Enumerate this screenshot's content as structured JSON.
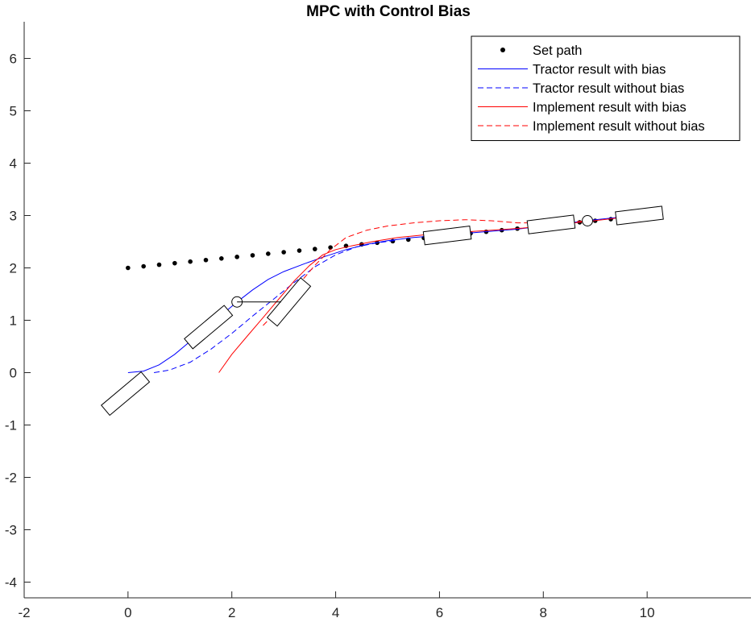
{
  "chart_data": {
    "type": "line",
    "title": "MPC with Control Bias",
    "xlabel": "",
    "ylabel": "",
    "xlim": [
      -2,
      12
    ],
    "ylim": [
      -4.3,
      6.7
    ],
    "xticks": [
      -2,
      0,
      2,
      4,
      6,
      8,
      10
    ],
    "yticks": [
      -4,
      -3,
      -2,
      -1,
      0,
      1,
      2,
      3,
      4,
      5,
      6
    ],
    "grid": false,
    "legend_position": "top-right",
    "series": [
      {
        "name": "Set path",
        "style": "dots",
        "color": "#000000",
        "x": [
          0,
          0.3,
          0.6,
          0.9,
          1.2,
          1.5,
          1.8,
          2.1,
          2.4,
          2.7,
          3.0,
          3.3,
          3.6,
          3.9,
          4.2,
          4.5,
          4.8,
          5.1,
          5.4,
          5.7,
          6.0,
          6.3,
          6.6,
          6.9,
          7.2,
          7.5,
          7.8,
          8.1,
          8.4,
          8.7,
          9.0,
          9.3
        ],
        "y": [
          2.0,
          2.03,
          2.06,
          2.09,
          2.12,
          2.15,
          2.18,
          2.21,
          2.24,
          2.27,
          2.3,
          2.33,
          2.36,
          2.39,
          2.42,
          2.45,
          2.48,
          2.51,
          2.54,
          2.57,
          2.6,
          2.63,
          2.66,
          2.69,
          2.72,
          2.75,
          2.78,
          2.81,
          2.84,
          2.87,
          2.9,
          2.93
        ]
      },
      {
        "name": "Tractor result with bias",
        "style": "solid",
        "color": "#0000ff",
        "x": [
          0,
          0.3,
          0.6,
          0.9,
          1.2,
          1.5,
          1.8,
          2.1,
          2.4,
          2.7,
          3.0,
          3.4,
          3.8,
          4.2,
          4.6,
          5.0,
          5.5,
          6.0,
          6.5,
          7.0,
          7.5,
          8.0,
          8.5,
          9.0,
          9.4
        ],
        "y": [
          0,
          0.03,
          0.15,
          0.35,
          0.6,
          0.85,
          1.1,
          1.35,
          1.58,
          1.78,
          1.93,
          2.08,
          2.22,
          2.35,
          2.45,
          2.52,
          2.58,
          2.62,
          2.66,
          2.7,
          2.74,
          2.8,
          2.86,
          2.92,
          2.96
        ]
      },
      {
        "name": "Tractor result without bias",
        "style": "dashed",
        "color": "#0000ff",
        "x": [
          0.5,
          0.8,
          1.2,
          1.6,
          2.0,
          2.4,
          2.8,
          3.2,
          3.6,
          4.0,
          4.4,
          4.8,
          5.2
        ],
        "y": [
          0,
          0.05,
          0.2,
          0.45,
          0.75,
          1.08,
          1.4,
          1.72,
          2.02,
          2.25,
          2.4,
          2.48,
          2.53
        ]
      },
      {
        "name": "Implement result with bias",
        "style": "solid",
        "color": "#ff0000",
        "x": [
          1.75,
          2.0,
          2.3,
          2.6,
          2.9,
          3.2,
          3.5,
          3.75,
          4.0,
          4.3,
          4.7,
          5.2,
          5.8,
          6.4,
          7.0,
          7.6,
          8.2,
          8.8,
          9.4
        ],
        "y": [
          0,
          0.35,
          0.7,
          1.05,
          1.4,
          1.75,
          2.05,
          2.25,
          2.35,
          2.42,
          2.5,
          2.58,
          2.64,
          2.68,
          2.72,
          2.76,
          2.82,
          2.88,
          2.95
        ]
      },
      {
        "name": "Implement result without bias",
        "style": "dashed",
        "color": "#ff0000",
        "x": [
          2.6,
          2.8,
          3.0,
          3.3,
          3.6,
          3.9,
          4.2,
          4.6,
          5.0,
          5.5,
          6.0,
          6.5,
          7.0,
          7.5,
          8.0,
          8.5,
          9.0
        ],
        "y": [
          0.9,
          1.1,
          1.35,
          1.7,
          2.05,
          2.35,
          2.58,
          2.72,
          2.8,
          2.86,
          2.9,
          2.92,
          2.9,
          2.86,
          2.86,
          2.88,
          2.9
        ]
      }
    ],
    "shapes": [
      {
        "kind": "rect",
        "cx": -0.05,
        "cy": -0.4,
        "length": 1.0,
        "width": 0.25,
        "angle_deg": 40
      },
      {
        "kind": "rect",
        "cx": 1.55,
        "cy": 0.87,
        "length": 1.0,
        "width": 0.25,
        "angle_deg": 40
      },
      {
        "kind": "rect",
        "cx": 3.1,
        "cy": 1.35,
        "length": 1.0,
        "width": 0.25,
        "angle_deg": 50
      },
      {
        "kind": "rect",
        "cx": 6.15,
        "cy": 2.62,
        "length": 0.9,
        "width": 0.25,
        "angle_deg": 7
      },
      {
        "kind": "rect",
        "cx": 8.15,
        "cy": 2.83,
        "length": 0.9,
        "width": 0.25,
        "angle_deg": 7
      },
      {
        "kind": "rect",
        "cx": 9.85,
        "cy": 3.0,
        "length": 0.9,
        "width": 0.25,
        "angle_deg": 7
      },
      {
        "kind": "circle",
        "cx": 2.1,
        "cy": 1.35,
        "r": 0.1
      },
      {
        "kind": "circle",
        "cx": 8.85,
        "cy": 2.9,
        "r": 0.1
      },
      {
        "kind": "segment",
        "x1": 2.1,
        "y1": 1.35,
        "x2": 2.95,
        "y2": 1.35
      }
    ]
  }
}
